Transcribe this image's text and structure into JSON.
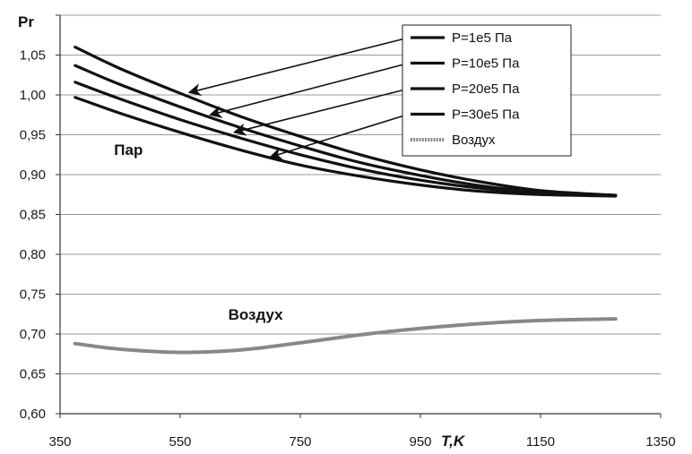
{
  "chart_data": {
    "type": "line",
    "ylabel": "Pr",
    "xlabel": "T,K",
    "xlim": [
      350,
      1350
    ],
    "ylim": [
      0.6,
      1.1
    ],
    "x_ticks": [
      "350",
      "550",
      "750",
      "950",
      "1150",
      "1350"
    ],
    "y_ticks": [
      "0,60",
      "0,65",
      "0,70",
      "0,75",
      "0,80",
      "0,85",
      "0,90",
      "0,95",
      "1,00",
      "1,05"
    ],
    "grid": "horizontal",
    "legend_position": "top-right",
    "annotations": [
      {
        "text": "Пар",
        "x": 440,
        "y": 0.925
      },
      {
        "text": "Воздух",
        "x": 630,
        "y": 0.718
      }
    ],
    "series": [
      {
        "name": "P=1e5 Па",
        "color": "#111111",
        "x": [
          375,
          450,
          550,
          650,
          750,
          850,
          950,
          1050,
          1150,
          1275
        ],
        "y": [
          1.06,
          1.033,
          1.002,
          0.973,
          0.948,
          0.925,
          0.906,
          0.891,
          0.88,
          0.874
        ]
      },
      {
        "name": "P=10e5 Па",
        "color": "#111111",
        "x": [
          375,
          450,
          550,
          650,
          750,
          850,
          950,
          1050,
          1150,
          1275
        ],
        "y": [
          1.037,
          1.013,
          0.985,
          0.959,
          0.936,
          0.915,
          0.899,
          0.886,
          0.878,
          0.874
        ]
      },
      {
        "name": "P=20e5 Па",
        "color": "#111111",
        "x": [
          375,
          450,
          550,
          650,
          750,
          850,
          950,
          1050,
          1150,
          1275
        ],
        "y": [
          1.016,
          0.995,
          0.969,
          0.946,
          0.925,
          0.907,
          0.893,
          0.883,
          0.877,
          0.874
        ]
      },
      {
        "name": "P=30e5 Па",
        "color": "#111111",
        "x": [
          375,
          450,
          550,
          650,
          750,
          850,
          950,
          1050,
          1150,
          1275
        ],
        "y": [
          0.997,
          0.977,
          0.953,
          0.931,
          0.912,
          0.898,
          0.887,
          0.879,
          0.875,
          0.873
        ]
      },
      {
        "name": "Воздух",
        "color": "#888888",
        "x": [
          375,
          450,
          550,
          650,
          750,
          850,
          950,
          1050,
          1150,
          1275
        ],
        "y": [
          0.688,
          0.681,
          0.677,
          0.68,
          0.689,
          0.699,
          0.707,
          0.713,
          0.717,
          0.719
        ]
      }
    ]
  },
  "arrows": [
    {
      "from_series": 0,
      "to_x": 565,
      "to_y": 1.003
    },
    {
      "from_series": 1,
      "to_x": 600,
      "to_y": 0.975
    },
    {
      "from_series": 2,
      "to_x": 640,
      "to_y": 0.953
    },
    {
      "from_series": 3,
      "to_x": 700,
      "to_y": 0.922
    }
  ]
}
